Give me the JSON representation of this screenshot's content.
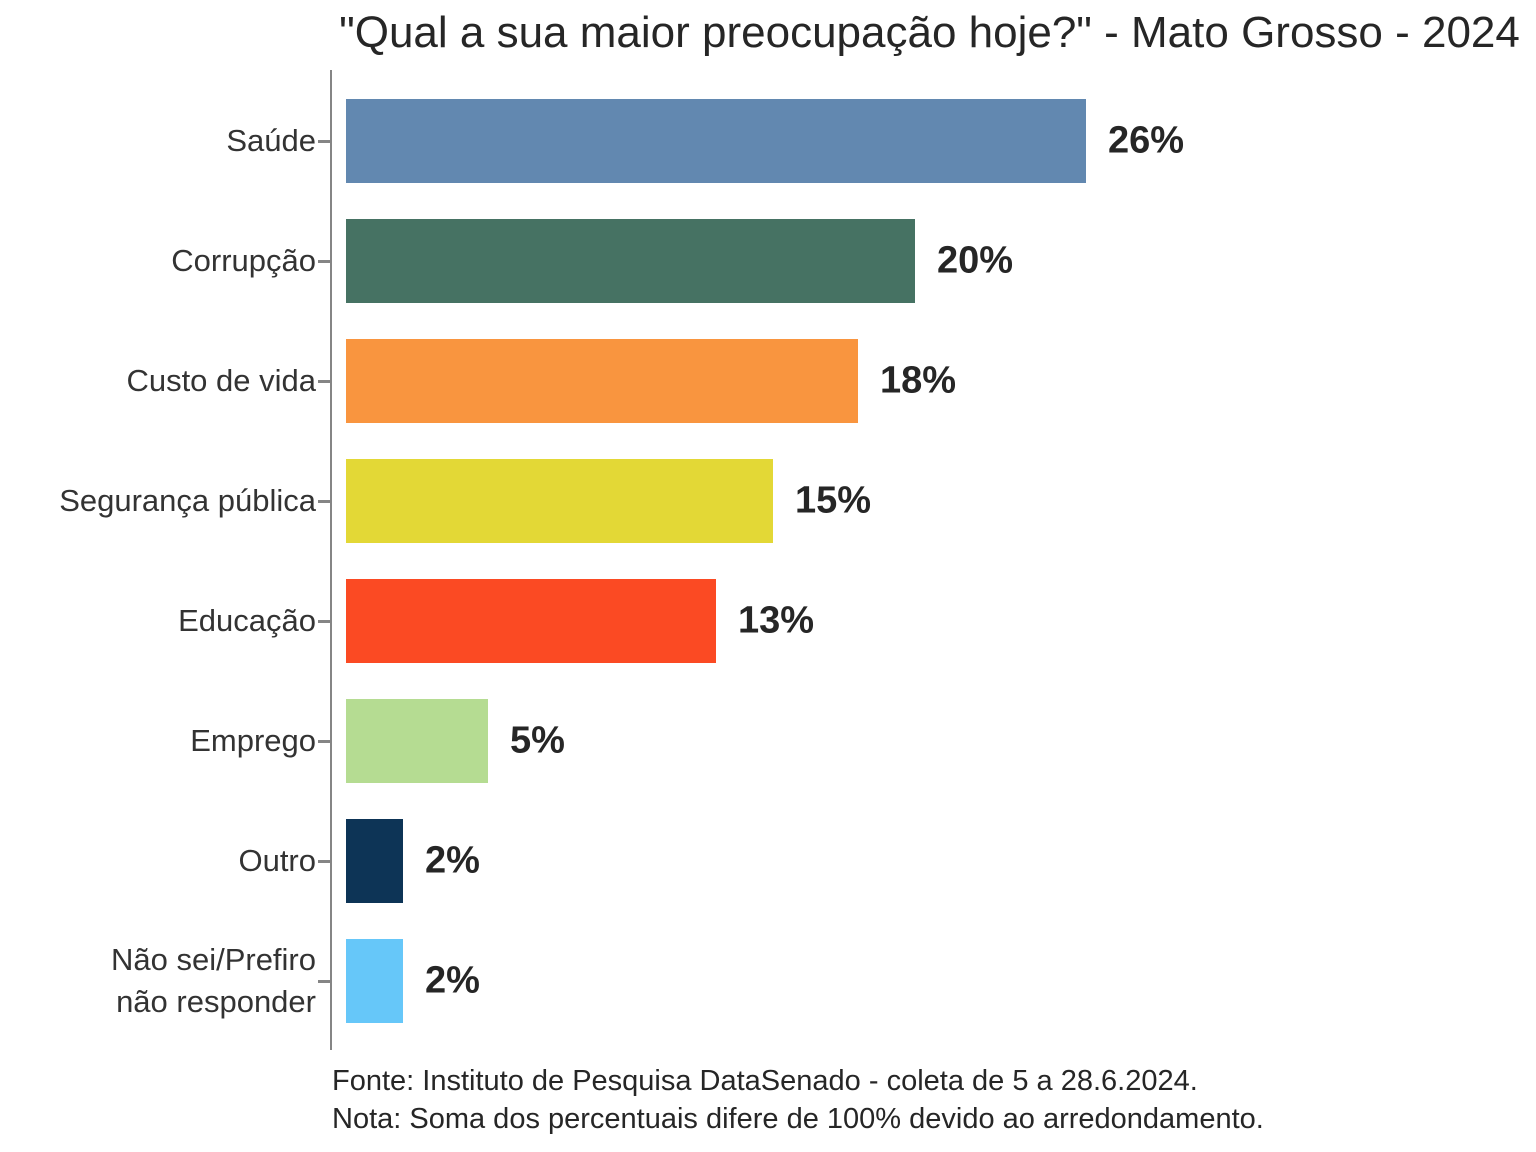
{
  "chart_data": {
    "type": "bar",
    "orientation": "horizontal",
    "title": "\"Qual a sua maior preocupação hoje?\" - Mato Grosso - 2024",
    "categories": [
      "Saúde",
      "Corrupção",
      "Custo de vida",
      "Segurança pública",
      "Educação",
      "Emprego",
      "Outro",
      "Não sei/Prefiro não responder"
    ],
    "category_display": [
      "Saúde",
      "Corrupção",
      "Custo de vida",
      "Segurança pública",
      "Educação",
      "Emprego",
      "Outro",
      "Não sei/Prefiro\nnão responder"
    ],
    "values": [
      26,
      20,
      18,
      15,
      13,
      5,
      2,
      2
    ],
    "value_labels": [
      "26%",
      "20%",
      "18%",
      "15%",
      "13%",
      "5%",
      "2%",
      "2%"
    ],
    "bar_colors": [
      "#6288b0",
      "#467263",
      "#f9953f",
      "#e3d836",
      "#fb4a23",
      "#b5dc92",
      "#0d3456",
      "#66c7f9"
    ],
    "xlabel": "",
    "ylabel": "",
    "xlim": [
      0,
      27
    ],
    "grid": false,
    "legend": "none"
  },
  "footer": {
    "source": "Fonte: Instituto de Pesquisa DataSenado - coleta de 5 a 28.6.2024.",
    "note": "Nota: Soma dos percentuais difere de 100% devido ao arredondamento."
  },
  "style": {
    "background": "#ffffff",
    "axis_color": "#858585",
    "title_color": "#262626",
    "category_label_color": "#333333",
    "value_label_color": "#262626"
  }
}
